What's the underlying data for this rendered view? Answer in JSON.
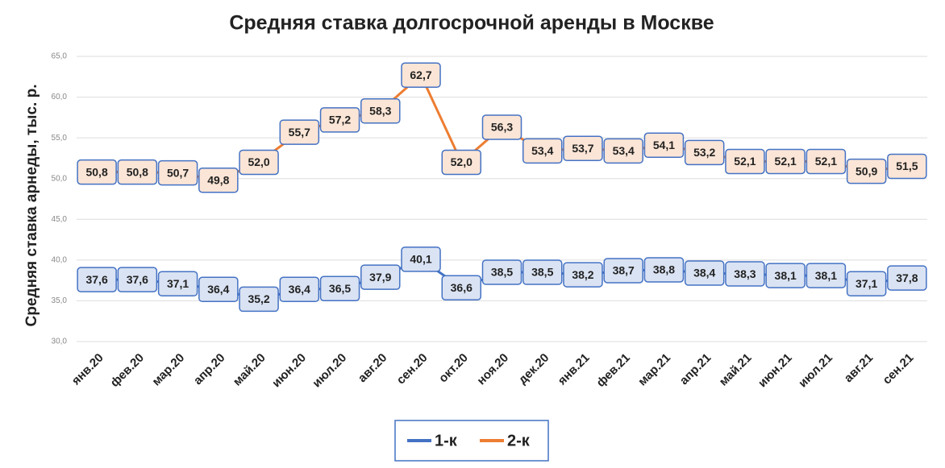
{
  "chart_data": {
    "type": "line",
    "title": "Средняя ставка долгосрочной аренды в Москве",
    "y_label": "Средняя ставка арнеды, тыс. р.",
    "categories": [
      "янв.20",
      "фев.20",
      "мар.20",
      "апр.20",
      "май.20",
      "июн.20",
      "июл.20",
      "авг.20",
      "сен.20",
      "окт.20",
      "ноя.20",
      "дек.20",
      "янв.21",
      "фев.21",
      "мар.21",
      "апр.21",
      "май.21",
      "июн.21",
      "июл.21",
      "авг.21",
      "сен.21"
    ],
    "series": [
      {
        "name": "1-к",
        "color": "#4472c4",
        "label_fill": "#dae3f3",
        "values": [
          37.6,
          37.6,
          37.1,
          36.4,
          35.2,
          36.4,
          36.5,
          37.9,
          40.1,
          36.6,
          38.5,
          38.5,
          38.2,
          38.7,
          38.8,
          38.4,
          38.3,
          38.1,
          38.1,
          37.1,
          37.8
        ],
        "value_labels": [
          "37,6",
          "37,6",
          "37,1",
          "36,4",
          "35,2",
          "36,4",
          "36,5",
          "37,9",
          "40,1",
          "36,6",
          "38,5",
          "38,5",
          "38,2",
          "38,7",
          "38,8",
          "38,4",
          "38,3",
          "38,1",
          "38,1",
          "37,1",
          "37,8"
        ]
      },
      {
        "name": "2-к",
        "color": "#ed7d31",
        "label_fill": "#fbe5d6",
        "values": [
          50.8,
          50.8,
          50.7,
          49.8,
          52.0,
          55.7,
          57.2,
          58.3,
          62.7,
          52.0,
          56.3,
          53.4,
          53.7,
          53.4,
          54.1,
          53.2,
          52.1,
          52.1,
          52.1,
          50.9,
          51.5
        ],
        "value_labels": [
          "50,8",
          "50,8",
          "50,7",
          "49,8",
          "52,0",
          "55,7",
          "57,2",
          "58,3",
          "62,7",
          "52,0",
          "56,3",
          "53,4",
          "53,7",
          "53,4",
          "54,1",
          "53,2",
          "52,1",
          "52,1",
          "52,1",
          "50,9",
          "51,5"
        ]
      }
    ],
    "ylim": [
      30,
      65
    ],
    "yticks": [
      {
        "value": 30,
        "label": "30,0"
      },
      {
        "value": 35,
        "label": "35,0"
      },
      {
        "value": 40,
        "label": "40,0"
      },
      {
        "value": 45,
        "label": "45,0"
      },
      {
        "value": 50,
        "label": "50,0"
      },
      {
        "value": 55,
        "label": "55,0"
      },
      {
        "value": 60,
        "label": "60,0"
      },
      {
        "value": 65,
        "label": "65,0"
      }
    ],
    "grid": true,
    "legend": "bottom"
  }
}
